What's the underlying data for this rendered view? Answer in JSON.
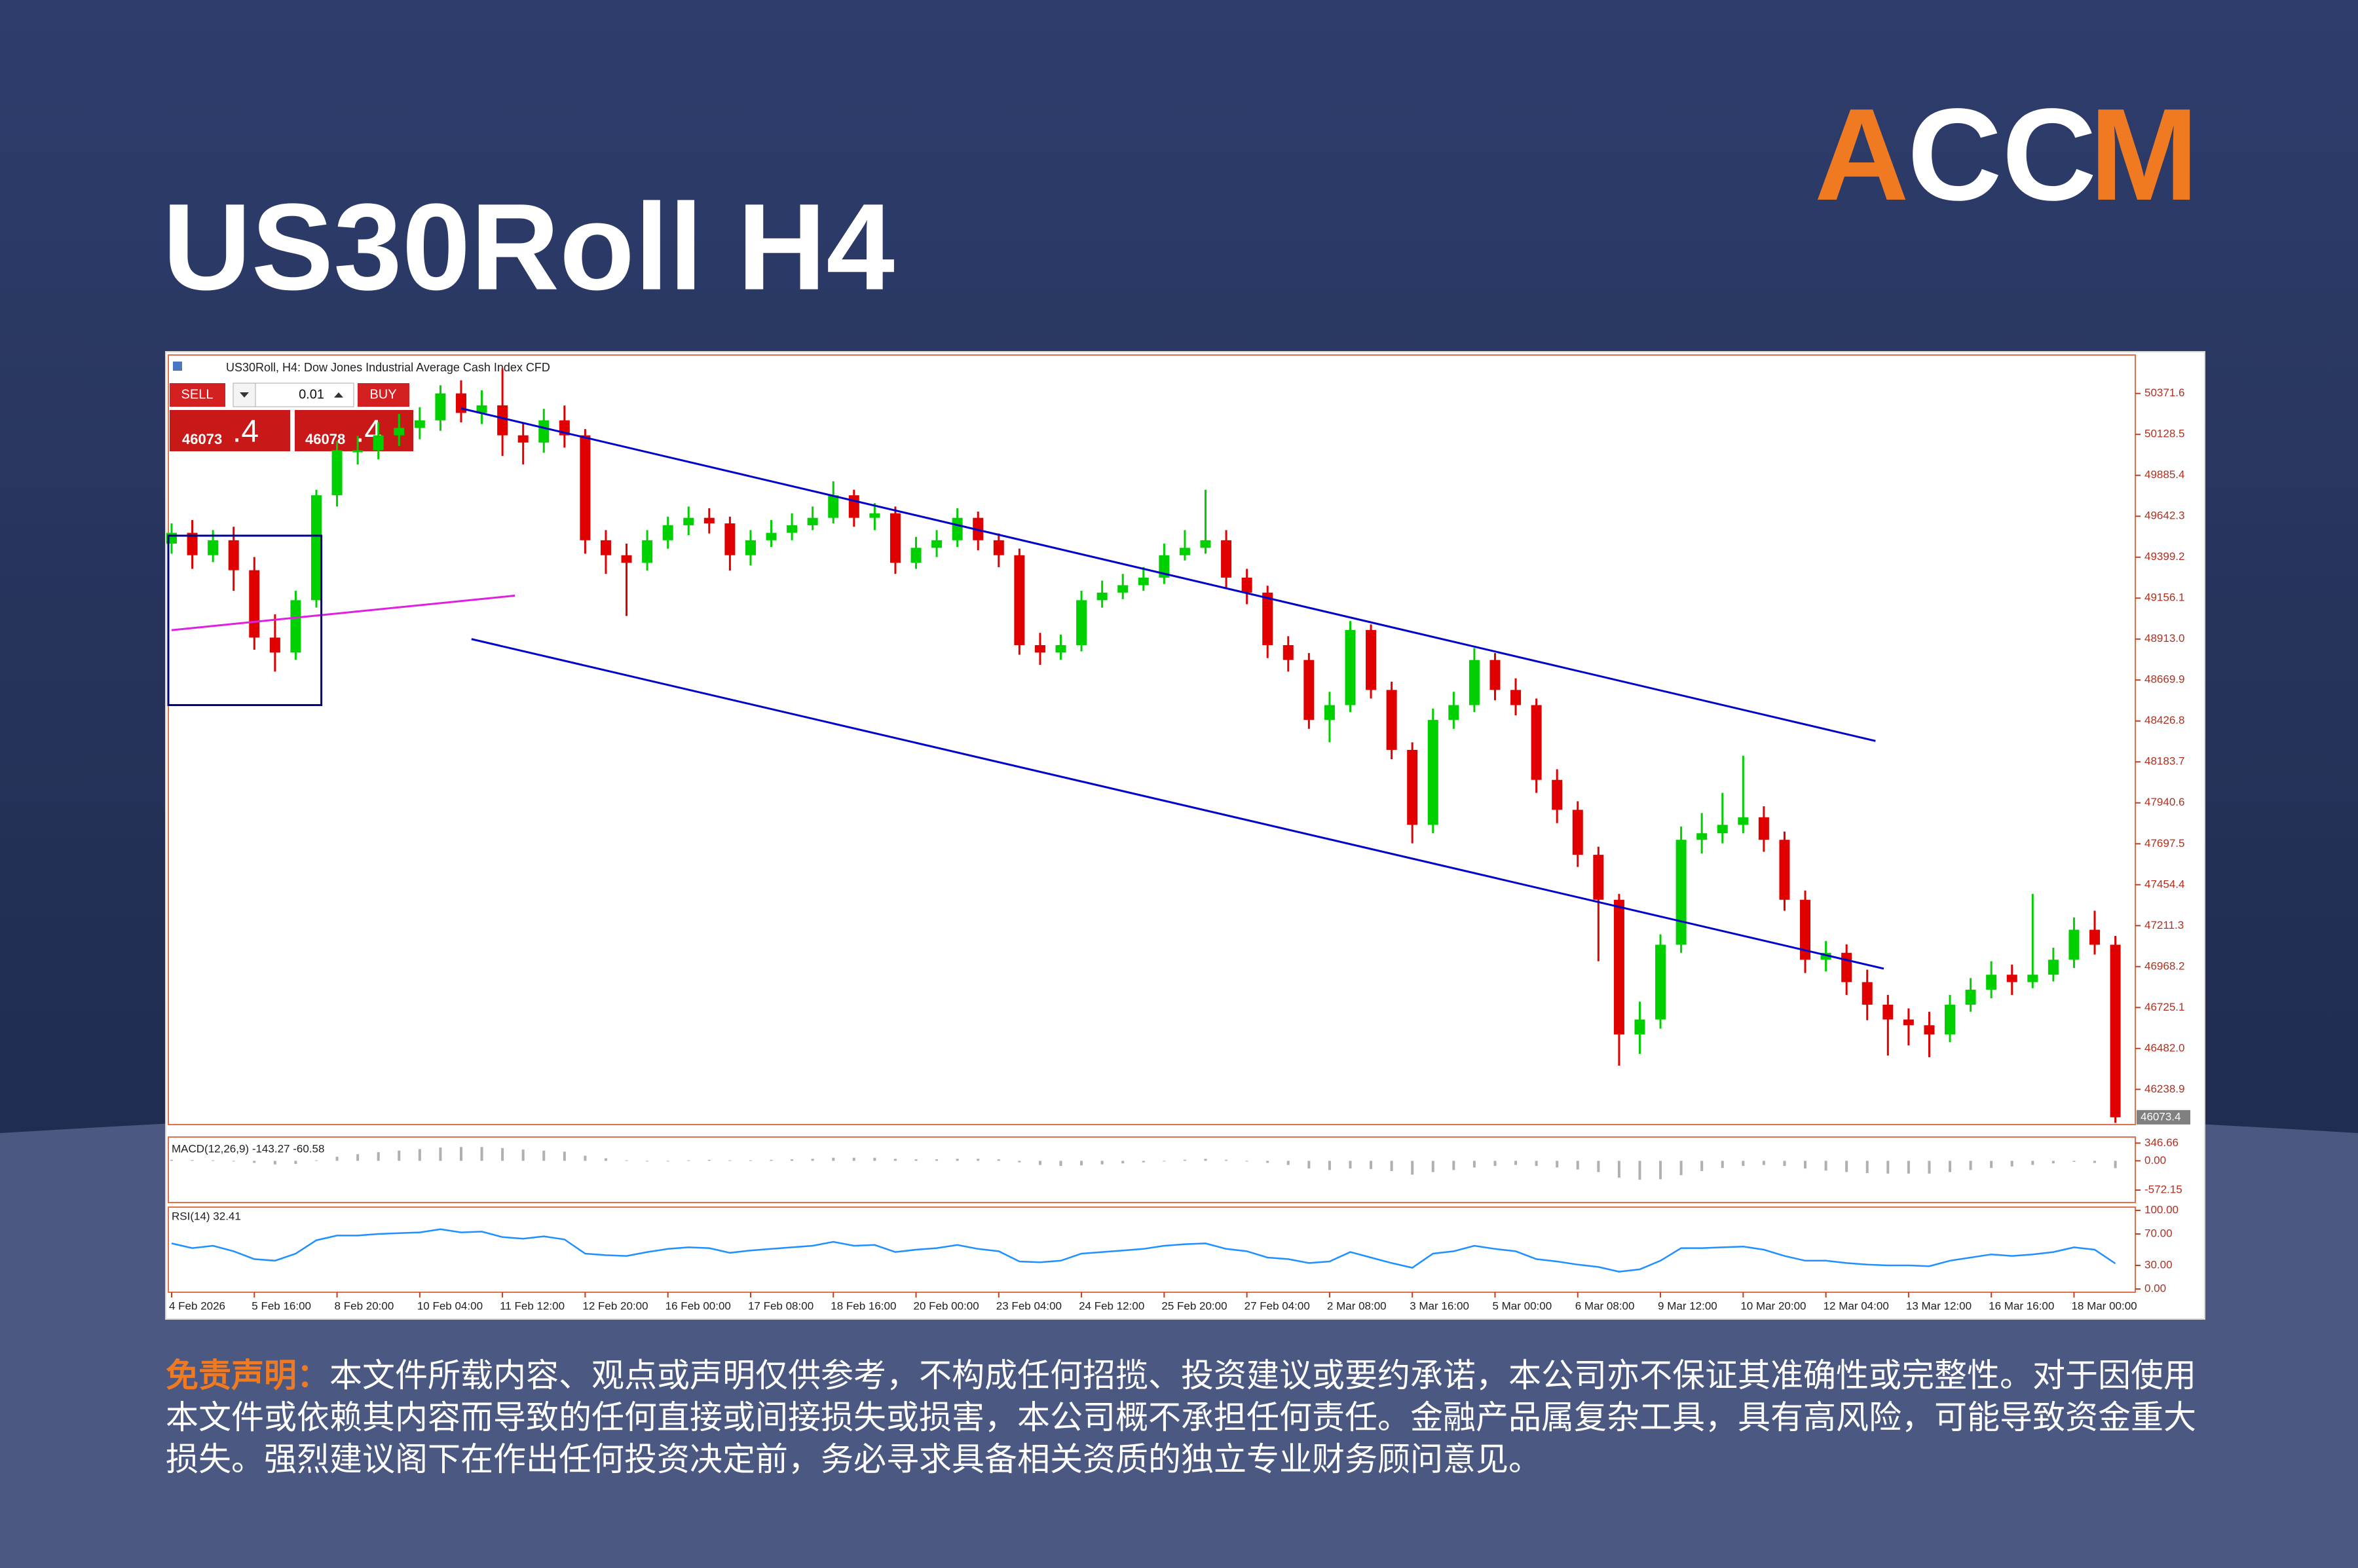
{
  "header": {
    "title": "US30Roll H4"
  },
  "logo": {
    "parts": [
      "A",
      "CC",
      "M"
    ]
  },
  "window": {
    "caption": "US30Roll, H4: Dow Jones Industrial Average Cash Index CFD",
    "sell": "SELL",
    "lot": "0.01",
    "buy": "BUY",
    "bid": "46073",
    "bid_frac": ".4",
    "ask": "46078",
    "ask_frac": ".4"
  },
  "chart_data": [
    {
      "type": "candlestick",
      "categories": [
        "4 Feb 2026",
        null,
        null,
        null,
        "5 Feb 16:00",
        null,
        null,
        null,
        "8 Feb 20:00",
        null,
        null,
        null,
        "10 Feb 04:00",
        null,
        null,
        null,
        "11 Feb 12:00",
        null,
        null,
        null,
        "12 Feb 20:00",
        null,
        null,
        null,
        "16 Feb 00:00",
        null,
        null,
        null,
        "17 Feb 08:00",
        null,
        null,
        null,
        "18 Feb 16:00",
        null,
        null,
        null,
        "20 Feb 00:00",
        null,
        null,
        null,
        "23 Feb 04:00",
        null,
        null,
        null,
        "24 Feb 12:00",
        null,
        null,
        null,
        "25 Feb 20:00",
        null,
        null,
        null,
        "27 Feb 04:00",
        null,
        null,
        null,
        "2 Mar 08:00",
        null,
        null,
        null,
        "3 Mar 16:00",
        null,
        null,
        null,
        "5 Mar 00:00",
        null,
        null,
        null,
        "6 Mar 08:00",
        null,
        null,
        null,
        "9 Mar 12:00",
        null,
        null,
        null,
        "10 Mar 20:00",
        null,
        null,
        null,
        "12 Mar 04:00",
        null,
        null,
        null,
        "13 Mar 12:00",
        null,
        null,
        null,
        "16 Mar 16:00",
        null,
        null,
        null,
        "18 Mar 00:00",
        null,
        null
      ],
      "open": [
        49480,
        49544,
        49411,
        49500,
        49322,
        48922,
        48833,
        49144,
        49767,
        50034,
        50034,
        50123,
        50167,
        50212,
        50372,
        50256,
        50301,
        50123,
        50080,
        50212,
        50123,
        49500,
        49411,
        49366,
        49500,
        49589,
        49633,
        49600,
        49411,
        49500,
        49544,
        49589,
        49633,
        49767,
        49633,
        49660,
        49366,
        49455,
        49500,
        49633,
        49500,
        49411,
        48877,
        48833,
        48877,
        49144,
        49189,
        49233,
        49278,
        49411,
        49455,
        49500,
        49278,
        49189,
        48877,
        48789,
        48433,
        48521,
        48967,
        48611,
        48255,
        47810,
        48433,
        48521,
        48789,
        48611,
        48521,
        48077,
        47899,
        47632,
        47365,
        46565,
        46654,
        47098,
        47721,
        47760,
        47810,
        47855,
        47721,
        47365,
        47009,
        47050,
        46876,
        46742,
        46654,
        46620,
        46565,
        46742,
        46831,
        46920,
        46876,
        46920,
        47009,
        47187,
        47098
      ],
      "high": [
        49600,
        49620,
        49560,
        49580,
        49400,
        49060,
        49200,
        49800,
        50090,
        50120,
        50200,
        50250,
        50290,
        50420,
        50450,
        50390,
        50520,
        50200,
        50280,
        50300,
        50160,
        49560,
        49480,
        49560,
        49640,
        49700,
        49690,
        49640,
        49560,
        49620,
        49660,
        49700,
        49850,
        49800,
        49720,
        49700,
        49520,
        49560,
        49690,
        49670,
        49540,
        49450,
        48950,
        48940,
        49200,
        49260,
        49300,
        49340,
        49480,
        49560,
        49800,
        49560,
        49330,
        49230,
        48930,
        48830,
        48600,
        49020,
        49000,
        48660,
        48300,
        48500,
        48600,
        48860,
        48830,
        48680,
        48560,
        48140,
        47950,
        47680,
        47400,
        46760,
        47160,
        47800,
        47880,
        48000,
        48220,
        47920,
        47770,
        47420,
        47120,
        47100,
        46950,
        46800,
        46720,
        46700,
        46800,
        46900,
        47000,
        46980,
        47400,
        47080,
        47260,
        47300,
        47150
      ],
      "low": [
        49420,
        49330,
        49370,
        49200,
        48850,
        48720,
        48790,
        49100,
        49700,
        49950,
        49980,
        50060,
        50100,
        50150,
        50200,
        50190,
        50000,
        49950,
        50020,
        50050,
        49420,
        49300,
        49050,
        49320,
        49450,
        49530,
        49540,
        49320,
        49350,
        49460,
        49500,
        49560,
        49600,
        49580,
        49560,
        49300,
        49330,
        49400,
        49460,
        49440,
        49340,
        48820,
        48760,
        48790,
        48840,
        49100,
        49150,
        49200,
        49240,
        49380,
        49420,
        49220,
        49120,
        48800,
        48720,
        48380,
        48300,
        48480,
        48560,
        48200,
        47700,
        47760,
        48380,
        48480,
        48550,
        48460,
        48000,
        47820,
        47560,
        47000,
        46380,
        46450,
        46600,
        47050,
        47640,
        47700,
        47760,
        47650,
        47300,
        46930,
        46940,
        46800,
        46650,
        46440,
        46500,
        46430,
        46520,
        46700,
        46780,
        46800,
        46840,
        46880,
        46960,
        47040,
        46040
      ],
      "close": [
        49544,
        49411,
        49500,
        49322,
        48922,
        48833,
        49144,
        49767,
        50034,
        50034,
        50123,
        50167,
        50212,
        50372,
        50256,
        50301,
        50123,
        50080,
        50212,
        50123,
        49500,
        49411,
        49366,
        49500,
        49589,
        49633,
        49600,
        49411,
        49500,
        49544,
        49589,
        49633,
        49767,
        49633,
        49660,
        49366,
        49455,
        49500,
        49633,
        49500,
        49411,
        48877,
        48833,
        48877,
        49144,
        49189,
        49233,
        49278,
        49411,
        49455,
        49500,
        49278,
        49189,
        48877,
        48789,
        48433,
        48521,
        48967,
        48611,
        48255,
        47810,
        48433,
        48521,
        48789,
        48611,
        48521,
        48077,
        47899,
        47632,
        47365,
        46565,
        46654,
        47098,
        47721,
        47760,
        47810,
        47855,
        47721,
        47365,
        47009,
        47050,
        46876,
        46742,
        46654,
        46620,
        46565,
        46742,
        46831,
        46920,
        46876,
        46920,
        47009,
        47187,
        47098,
        46073.4
      ],
      "up_color": "#00d000",
      "down_color": "#e00000",
      "ylim": [
        46030,
        50600
      ],
      "yticks": [
        50371.6,
        50128.5,
        49885.4,
        49642.3,
        49399.2,
        49156.1,
        {
          "value": 48913,
          "label": "48913.0"
        },
        48669.9,
        48426.8,
        48183.7,
        47940.6,
        47697.5,
        47454.4,
        47211.3,
        46968.2,
        46725.1,
        {
          "value": 46482,
          "label": "46482.0"
        },
        46238.9
      ],
      "last_price": 46073.4,
      "trendlines": [
        {
          "color": "#0000cc",
          "x": [
            14.0,
            82.4
          ],
          "y": [
            50283,
            48308
          ]
        },
        {
          "color": "#0000cc",
          "x": [
            14.5,
            82.8
          ],
          "y": [
            48913,
            46956
          ]
        },
        {
          "color": "#e020e0",
          "x": [
            0,
            16.6
          ],
          "y": [
            48966,
            49171
          ]
        }
      ],
      "rectangles": [
        {
          "color": "#000080",
          "x": [
            0,
            7.4
          ],
          "y": [
            49527,
            48521
          ]
        }
      ]
    },
    {
      "type": "bar",
      "label": "MACD(12,26,9) -143.27 -60.58",
      "color": "#b0b0b0",
      "values": [
        20,
        15,
        10,
        0,
        -40,
        -70,
        -60,
        10,
        80,
        130,
        170,
        200,
        230,
        260,
        270,
        270,
        250,
        220,
        200,
        180,
        100,
        50,
        10,
        -10,
        0,
        10,
        20,
        10,
        10,
        20,
        30,
        40,
        60,
        60,
        60,
        40,
        30,
        30,
        40,
        40,
        30,
        -30,
        -80,
        -100,
        -90,
        -70,
        -50,
        -30,
        0,
        20,
        40,
        20,
        0,
        -40,
        -80,
        -150,
        -180,
        -150,
        -160,
        -200,
        -270,
        -220,
        -180,
        -130,
        -100,
        -80,
        -100,
        -130,
        -170,
        -220,
        -330,
        -370,
        -360,
        -280,
        -200,
        -140,
        -100,
        -80,
        -100,
        -150,
        -190,
        -220,
        -240,
        -250,
        -250,
        -250,
        -220,
        -180,
        -140,
        -110,
        -80,
        -50,
        -20,
        -40,
        -143.27
      ],
      "ylim": [
        -790,
        440
      ],
      "yticks": [
        346.66,
        {
          "value": 0,
          "label": "0.00"
        },
        -572.15
      ]
    },
    {
      "type": "line",
      "label": "RSI(14) 32.41",
      "color": "#1e90ff",
      "values": [
        58,
        52,
        55,
        48,
        38,
        36,
        45,
        62,
        68,
        68,
        70,
        71,
        72,
        76,
        72,
        73,
        66,
        64,
        67,
        63,
        45,
        43,
        42,
        47,
        51,
        53,
        52,
        46,
        49,
        51,
        53,
        55,
        60,
        55,
        56,
        47,
        50,
        52,
        56,
        51,
        48,
        35,
        34,
        36,
        45,
        47,
        49,
        51,
        55,
        57,
        58,
        51,
        48,
        40,
        38,
        33,
        35,
        47,
        40,
        33,
        27,
        45,
        48,
        55,
        51,
        48,
        38,
        35,
        31,
        28,
        22,
        25,
        36,
        52,
        52,
        53,
        54,
        50,
        42,
        36,
        36,
        33,
        31,
        30,
        30,
        29,
        36,
        40,
        44,
        42,
        44,
        47,
        53,
        50,
        32.41
      ],
      "ylim": [
        0,
        100
      ],
      "yticks": [
        {
          "value": 100,
          "label": "100.00"
        },
        {
          "value": 70,
          "label": "70.00"
        },
        {
          "value": 30,
          "label": "30.00"
        },
        {
          "value": 0,
          "label": "0.00"
        }
      ]
    }
  ],
  "disclaimer": {
    "label": "免责声明：",
    "text": "本文件所载内容、观点或声明仅供参考，不构成任何招揽、投资建议或要约承诺，本公司亦不保证其准确性或完整性。对于因使用本文件或依赖其内容而导致的任何直接或间接损失或损害，本公司概不承担任何责任。金融产品属复杂工具，具有高风险，可能导致资金重大损失。强烈建议阁下在作出任何投资决定前，务必寻求具备相关资质的独立专业财务顾问意见。"
  }
}
